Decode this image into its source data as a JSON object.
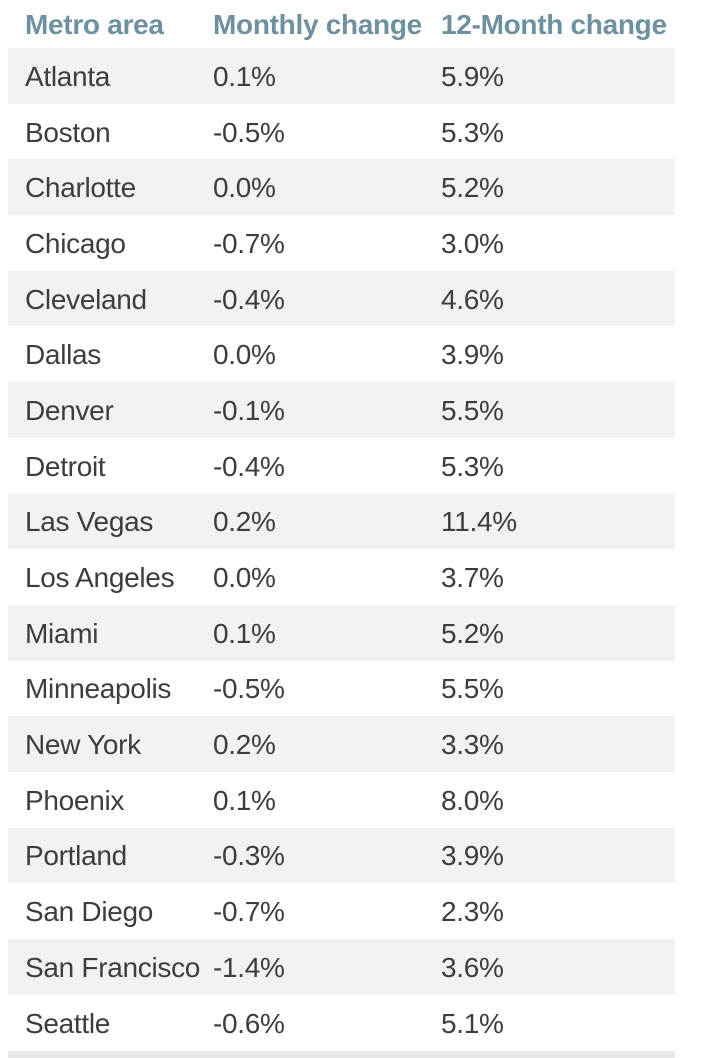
{
  "colors": {
    "header_text": "#6d919e",
    "body_text": "#3d3d3d",
    "row_stripe": "#f2f2f4",
    "bottom_bar": "#e7e7e8",
    "background": "#ffffff"
  },
  "table": {
    "columns": [
      "Metro area",
      "Monthly change",
      "12-Month change"
    ],
    "rows": [
      {
        "metro": "Atlanta",
        "monthly": "0.1%",
        "twelve_month": "5.9%"
      },
      {
        "metro": "Boston",
        "monthly": "-0.5%",
        "twelve_month": "5.3%"
      },
      {
        "metro": "Charlotte",
        "monthly": "0.0%",
        "twelve_month": "5.2%"
      },
      {
        "metro": "Chicago",
        "monthly": "-0.7%",
        "twelve_month": "3.0%"
      },
      {
        "metro": "Cleveland",
        "monthly": "-0.4%",
        "twelve_month": "4.6%"
      },
      {
        "metro": "Dallas",
        "monthly": "0.0%",
        "twelve_month": "3.9%"
      },
      {
        "metro": "Denver",
        "monthly": "-0.1%",
        "twelve_month": "5.5%"
      },
      {
        "metro": "Detroit",
        "monthly": "-0.4%",
        "twelve_month": "5.3%"
      },
      {
        "metro": "Las Vegas",
        "monthly": "0.2%",
        "twelve_month": "11.4%"
      },
      {
        "metro": "Los Angeles",
        "monthly": "0.0%",
        "twelve_month": "3.7%"
      },
      {
        "metro": "Miami",
        "monthly": "0.1%",
        "twelve_month": "5.2%"
      },
      {
        "metro": "Minneapolis",
        "monthly": "-0.5%",
        "twelve_month": "5.5%"
      },
      {
        "metro": "New York",
        "monthly": "0.2%",
        "twelve_month": "3.3%"
      },
      {
        "metro": "Phoenix",
        "monthly": "0.1%",
        "twelve_month": "8.0%"
      },
      {
        "metro": "Portland",
        "monthly": "-0.3%",
        "twelve_month": "3.9%"
      },
      {
        "metro": "San Diego",
        "monthly": "-0.7%",
        "twelve_month": "2.3%"
      },
      {
        "metro": "San Francisco",
        "monthly": "-1.4%",
        "twelve_month": "3.6%"
      },
      {
        "metro": "Seattle",
        "monthly": "-0.6%",
        "twelve_month": "5.1%"
      }
    ]
  },
  "chart_data": {
    "type": "table",
    "title": "",
    "columns": [
      "Metro area",
      "Monthly change",
      "12-Month change"
    ],
    "rows": [
      [
        "Atlanta",
        "0.1%",
        "5.9%"
      ],
      [
        "Boston",
        "-0.5%",
        "5.3%"
      ],
      [
        "Charlotte",
        "0.0%",
        "5.2%"
      ],
      [
        "Chicago",
        "-0.7%",
        "3.0%"
      ],
      [
        "Cleveland",
        "-0.4%",
        "4.6%"
      ],
      [
        "Dallas",
        "0.0%",
        "3.9%"
      ],
      [
        "Denver",
        "-0.1%",
        "5.5%"
      ],
      [
        "Detroit",
        "-0.4%",
        "5.3%"
      ],
      [
        "Las Vegas",
        "0.2%",
        "11.4%"
      ],
      [
        "Los Angeles",
        "0.0%",
        "3.7%"
      ],
      [
        "Miami",
        "0.1%",
        "5.2%"
      ],
      [
        "Minneapolis",
        "-0.5%",
        "5.5%"
      ],
      [
        "New York",
        "0.2%",
        "3.3%"
      ],
      [
        "Phoenix",
        "0.1%",
        "8.0%"
      ],
      [
        "Portland",
        "-0.3%",
        "3.9%"
      ],
      [
        "San Diego",
        "-0.7%",
        "2.3%"
      ],
      [
        "San Francisco",
        "-1.4%",
        "3.6%"
      ],
      [
        "Seattle",
        "-0.6%",
        "5.1%"
      ]
    ],
    "layout": {
      "zebra_striping": true,
      "striped_row_indices": "even (0-based)",
      "grid": false
    }
  }
}
